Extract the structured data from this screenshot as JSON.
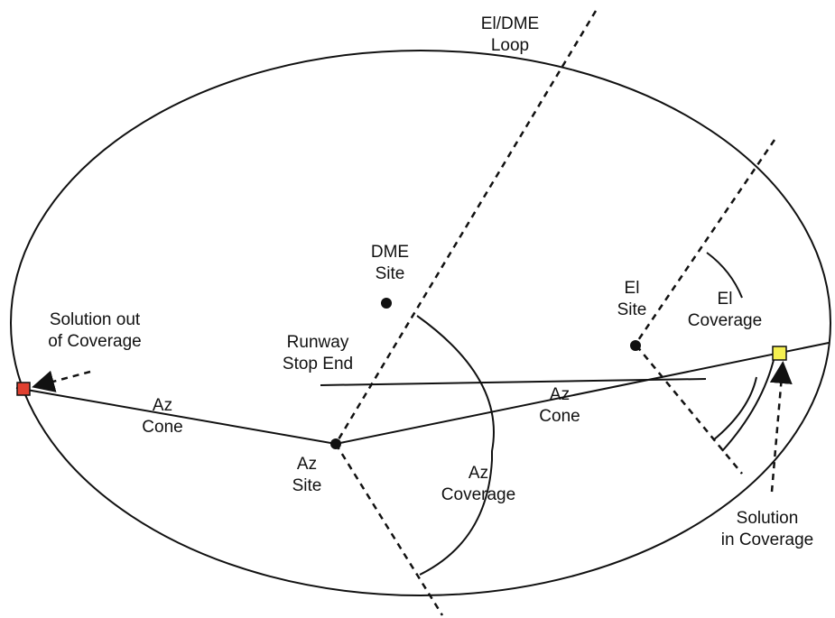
{
  "labels": {
    "loop": [
      "El/DME",
      "Loop"
    ],
    "dme_site": [
      "DME",
      "Site"
    ],
    "el_site": [
      "El",
      "Site"
    ],
    "el_coverage": [
      "El",
      "Coverage"
    ],
    "solution_out": [
      "Solution out",
      "of Coverage"
    ],
    "runway": [
      "Runway",
      "Stop End"
    ],
    "az_cone_left": [
      "Az",
      "Cone"
    ],
    "az_cone_right": [
      "Az",
      "Cone"
    ],
    "az_site": [
      "Az",
      "Site"
    ],
    "az_coverage": [
      "Az",
      "Coverage"
    ],
    "solution_in": [
      "Solution",
      "in Coverage"
    ]
  }
}
